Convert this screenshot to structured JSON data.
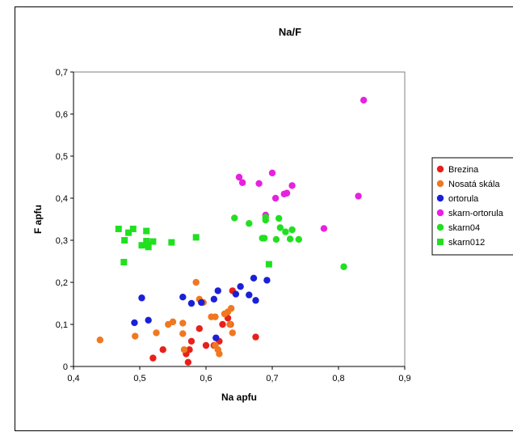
{
  "chart_data": {
    "type": "scatter",
    "title": "Na/F",
    "xlabel": "Na apfu",
    "ylabel": "F apfu",
    "xlim": [
      0.4,
      0.9
    ],
    "ylim": [
      0,
      0.7
    ],
    "xticks": [
      0.4,
      0.5,
      0.6,
      0.7,
      0.8,
      0.9
    ],
    "xtick_labels": [
      "0,4",
      "0,5",
      "0,6",
      "0,7",
      "0,8",
      "0,9"
    ],
    "yticks": [
      0,
      0.1,
      0.2,
      0.3,
      0.4,
      0.5,
      0.6,
      0.7
    ],
    "ytick_labels": [
      "0",
      "0,1",
      "0,2",
      "0,3",
      "0,4",
      "0,5",
      "0,6",
      "0,7"
    ],
    "grid": false,
    "legend_position": "right",
    "series": [
      {
        "name": "Brezina",
        "color": "#e8201a",
        "marker": "circle",
        "points": [
          [
            0.52,
            0.02
          ],
          [
            0.535,
            0.04
          ],
          [
            0.575,
            0.04
          ],
          [
            0.578,
            0.06
          ],
          [
            0.573,
            0.01
          ],
          [
            0.57,
            0.03
          ],
          [
            0.59,
            0.09
          ],
          [
            0.6,
            0.05
          ],
          [
            0.612,
            0.05
          ],
          [
            0.62,
            0.06
          ],
          [
            0.625,
            0.1
          ],
          [
            0.633,
            0.115
          ],
          [
            0.64,
            0.18
          ],
          [
            0.675,
            0.07
          ],
          [
            0.637,
            0.1
          ]
        ]
      },
      {
        "name": "Nosatá skála",
        "color": "#f07820",
        "marker": "circle",
        "points": [
          [
            0.44,
            0.063
          ],
          [
            0.493,
            0.072
          ],
          [
            0.525,
            0.08
          ],
          [
            0.543,
            0.1
          ],
          [
            0.55,
            0.106
          ],
          [
            0.565,
            0.103
          ],
          [
            0.565,
            0.078
          ],
          [
            0.567,
            0.04
          ],
          [
            0.585,
            0.2
          ],
          [
            0.59,
            0.16
          ],
          [
            0.596,
            0.152
          ],
          [
            0.608,
            0.118
          ],
          [
            0.614,
            0.118
          ],
          [
            0.614,
            0.05
          ],
          [
            0.618,
            0.04
          ],
          [
            0.62,
            0.03
          ],
          [
            0.628,
            0.125
          ],
          [
            0.633,
            0.13
          ],
          [
            0.636,
            0.1
          ],
          [
            0.638,
            0.138
          ],
          [
            0.64,
            0.08
          ]
        ]
      },
      {
        "name": "ortorula",
        "color": "#1a20d8",
        "marker": "circle",
        "points": [
          [
            0.492,
            0.104
          ],
          [
            0.503,
            0.163
          ],
          [
            0.513,
            0.11
          ],
          [
            0.565,
            0.165
          ],
          [
            0.578,
            0.15
          ],
          [
            0.593,
            0.152
          ],
          [
            0.615,
            0.068
          ],
          [
            0.612,
            0.16
          ],
          [
            0.618,
            0.18
          ],
          [
            0.645,
            0.172
          ],
          [
            0.652,
            0.19
          ],
          [
            0.665,
            0.17
          ],
          [
            0.672,
            0.21
          ],
          [
            0.675,
            0.157
          ],
          [
            0.692,
            0.205
          ]
        ]
      },
      {
        "name": "skarn-ortorula",
        "color": "#e820e0",
        "marker": "circle",
        "points": [
          [
            0.65,
            0.45
          ],
          [
            0.655,
            0.437
          ],
          [
            0.68,
            0.435
          ],
          [
            0.69,
            0.36
          ],
          [
            0.7,
            0.46
          ],
          [
            0.705,
            0.4
          ],
          [
            0.718,
            0.41
          ],
          [
            0.722,
            0.412
          ],
          [
            0.73,
            0.43
          ],
          [
            0.778,
            0.328
          ],
          [
            0.83,
            0.405
          ],
          [
            0.838,
            0.633
          ]
        ]
      },
      {
        "name": "skarn04",
        "color": "#20e020",
        "marker": "circle",
        "points": [
          [
            0.643,
            0.353
          ],
          [
            0.665,
            0.34
          ],
          [
            0.685,
            0.305
          ],
          [
            0.688,
            0.305
          ],
          [
            0.69,
            0.355
          ],
          [
            0.69,
            0.348
          ],
          [
            0.706,
            0.302
          ],
          [
            0.71,
            0.352
          ],
          [
            0.712,
            0.33
          ],
          [
            0.72,
            0.32
          ],
          [
            0.727,
            0.303
          ],
          [
            0.73,
            0.325
          ],
          [
            0.74,
            0.302
          ],
          [
            0.808,
            0.237
          ]
        ]
      },
      {
        "name": "skarn012",
        "color": "#20e020",
        "marker": "square",
        "points": [
          [
            0.468,
            0.327
          ],
          [
            0.476,
            0.248
          ],
          [
            0.477,
            0.3
          ],
          [
            0.483,
            0.318
          ],
          [
            0.49,
            0.327
          ],
          [
            0.503,
            0.288
          ],
          [
            0.51,
            0.298
          ],
          [
            0.51,
            0.322
          ],
          [
            0.511,
            0.29
          ],
          [
            0.513,
            0.284
          ],
          [
            0.52,
            0.297
          ],
          [
            0.548,
            0.295
          ],
          [
            0.585,
            0.307
          ],
          [
            0.695,
            0.243
          ]
        ]
      }
    ]
  }
}
